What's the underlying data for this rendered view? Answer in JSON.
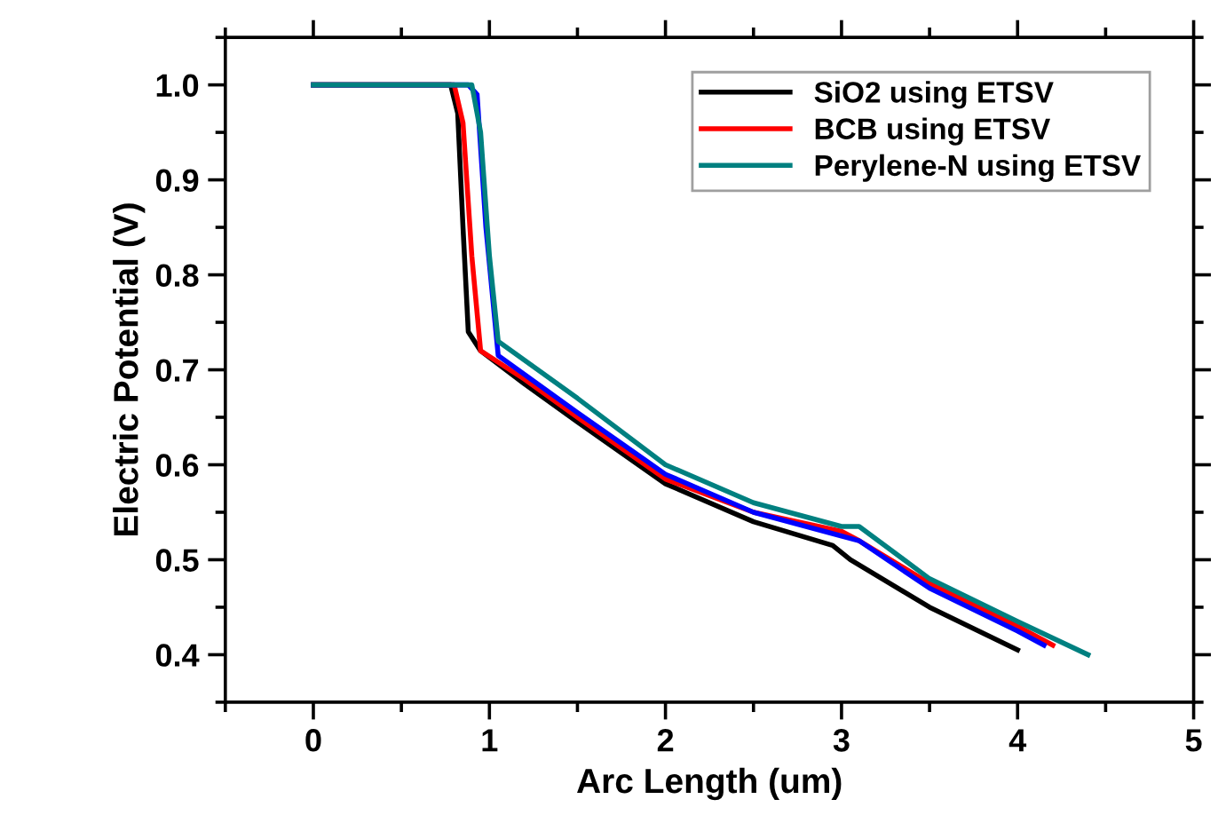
{
  "chart_data": {
    "type": "line",
    "xlabel": "Arc Length (um)",
    "ylabel": "Electric Potential (V)",
    "xlim": [
      -0.5,
      5
    ],
    "ylim": [
      0.35,
      1.05
    ],
    "xticks": [
      0,
      1,
      2,
      3,
      4,
      5
    ],
    "yticks": [
      {
        "value": 0.4,
        "label": "0.4"
      },
      {
        "value": 0.5,
        "label": "0.5"
      },
      {
        "value": 0.6,
        "label": "0.6"
      },
      {
        "value": 0.7,
        "label": "0.7"
      },
      {
        "value": 0.8,
        "label": "0.8"
      },
      {
        "value": 0.9,
        "label": "0.9"
      },
      {
        "value": 1.0,
        "label": "1.0"
      }
    ],
    "grid": false,
    "legend": "top right",
    "marker": "none",
    "line_style": "solid",
    "series": [
      {
        "name": "SiO2 using ETSV",
        "color": "#000000",
        "x": [
          0,
          0.78,
          0.82,
          0.85,
          0.88,
          0.95,
          1.2,
          1.5,
          2,
          2.5,
          2.95,
          3.05,
          3.5,
          4
        ],
        "values": [
          1,
          1,
          0.97,
          0.85,
          0.74,
          0.72,
          0.685,
          0.645,
          0.58,
          0.54,
          0.515,
          0.5,
          0.45,
          0.405
        ]
      },
      {
        "name": "BCB using ETSV",
        "color": "#ff0000",
        "x": [
          0,
          0.8,
          0.85,
          0.9,
          0.95,
          1.2,
          1.5,
          2,
          2.5,
          3,
          3.1,
          3.5,
          4,
          4.2
        ],
        "values": [
          1,
          1,
          0.96,
          0.82,
          0.72,
          0.69,
          0.65,
          0.585,
          0.55,
          0.53,
          0.52,
          0.475,
          0.43,
          0.41
        ]
      },
      {
        "color": "#0000ff",
        "x": [
          0,
          0.88,
          0.93,
          0.98,
          1.05,
          1.5,
          2,
          2.5,
          3,
          3.1,
          3.5,
          4,
          4.15
        ],
        "values": [
          1,
          1,
          0.99,
          0.85,
          0.715,
          0.655,
          0.59,
          0.55,
          0.525,
          0.52,
          0.47,
          0.425,
          0.41
        ]
      },
      {
        "name": "Perylene-N using ETSV",
        "color": "#008080",
        "x": [
          0,
          0.9,
          0.95,
          1.0,
          1.05,
          1.5,
          2,
          2.5,
          3,
          3.1,
          3.5,
          4,
          4.4
        ],
        "values": [
          1,
          1,
          0.95,
          0.82,
          0.73,
          0.67,
          0.6,
          0.56,
          0.535,
          0.535,
          0.48,
          0.435,
          0.4
        ]
      }
    ]
  }
}
